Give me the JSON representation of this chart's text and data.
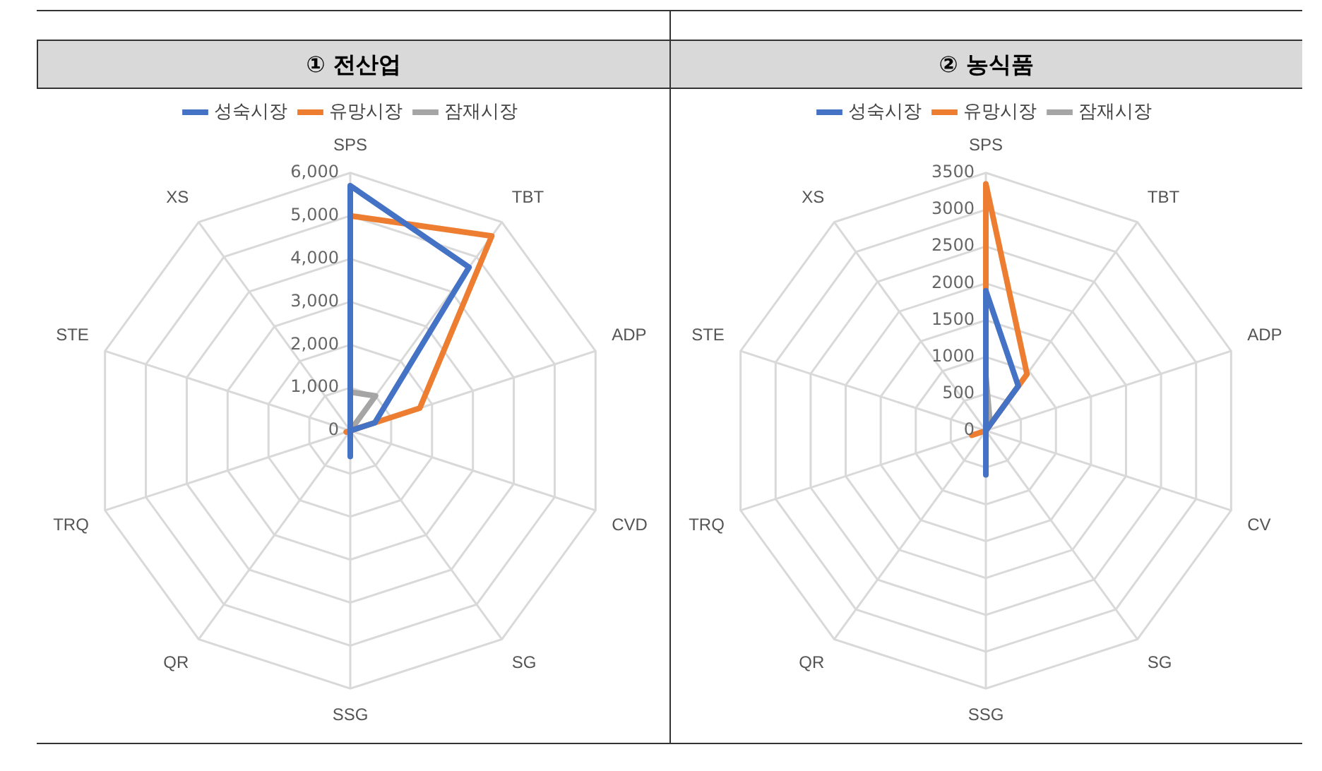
{
  "chart_data": [
    {
      "type": "radar",
      "title": "① 전산업",
      "categories": [
        "SPS",
        "TBT",
        "ADP",
        "CVD",
        "SG",
        "SSG",
        "QR",
        "TRQ",
        "STE",
        "XS"
      ],
      "series": [
        {
          "name": "성숙시장",
          "color": "#4472c4",
          "values": [
            5700,
            4700,
            600,
            0,
            0,
            600,
            0,
            0,
            0,
            0
          ]
        },
        {
          "name": "유망시장",
          "color": "#ed7d31",
          "values": [
            5000,
            5600,
            1700,
            0,
            0,
            0,
            0,
            100,
            0,
            0
          ]
        },
        {
          "name": "잠재시장",
          "color": "#a5a5a5",
          "values": [
            900,
            1000,
            0,
            0,
            0,
            0,
            0,
            0,
            0,
            0
          ]
        }
      ],
      "ylim": [
        0,
        6000
      ],
      "yticks": [
        0,
        {
          "value": 1000,
          "label": "1,000"
        },
        {
          "value": 2000,
          "label": "2,000"
        },
        {
          "value": 3000,
          "label": "3,000"
        },
        {
          "value": 4000,
          "label": "4,000"
        },
        {
          "value": 5000,
          "label": "5,000"
        },
        {
          "value": 6000,
          "label": "6,000"
        }
      ],
      "grid": true,
      "legend": "top"
    },
    {
      "type": "radar",
      "title": "② 농식품",
      "categories": [
        "SPS",
        "TBT",
        "ADP",
        "CV",
        "SG",
        "SSG",
        "QR",
        "TRQ",
        "STE",
        "XS"
      ],
      "series": [
        {
          "name": "성숙시장",
          "color": "#4472c4",
          "values": [
            1900,
            750,
            0,
            0,
            0,
            600,
            0,
            0,
            0,
            0
          ]
        },
        {
          "name": "유망시장",
          "color": "#ed7d31",
          "values": [
            3350,
            950,
            0,
            0,
            0,
            0,
            0,
            200,
            0,
            0
          ]
        },
        {
          "name": "잠재시장",
          "color": "#a5a5a5",
          "values": [
            750,
            100,
            0,
            0,
            0,
            0,
            0,
            0,
            0,
            0
          ]
        }
      ],
      "ylim": [
        0,
        3500
      ],
      "yticks": [
        0,
        500,
        1000,
        1500,
        2000,
        2500,
        3000,
        3500
      ],
      "grid": true,
      "legend": "top"
    }
  ]
}
